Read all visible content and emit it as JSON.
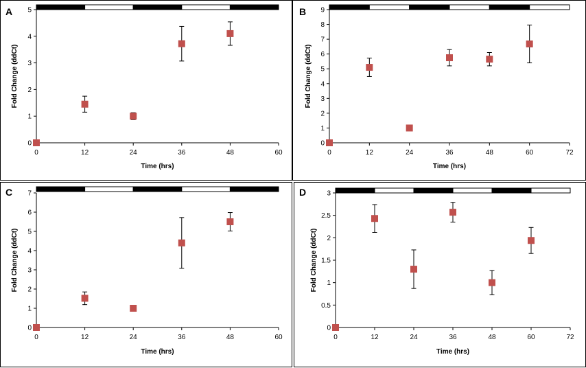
{
  "chart_data": [
    {
      "type": "scatter",
      "panel_label": "A",
      "xlabel": "Time (hrs)",
      "ylabel": "Fold Change (ddCt)",
      "xlim": [
        0,
        60
      ],
      "ylim": [
        0,
        5
      ],
      "xticks": [
        "0",
        "12",
        "24",
        "36",
        "48",
        "60"
      ],
      "xtick_values": [
        0,
        12,
        24,
        36,
        48,
        60
      ],
      "yticks": [
        "0",
        "1",
        "2",
        "3",
        "4",
        "5"
      ],
      "ytick_values": [
        0,
        1,
        2,
        3,
        4,
        5
      ],
      "light_dark_bar": [
        "dark",
        "light",
        "dark",
        "light",
        "dark"
      ],
      "points": [
        {
          "x": 0,
          "y": 0,
          "err": 0
        },
        {
          "x": 12,
          "y": 1.45,
          "err": 0.3
        },
        {
          "x": 24,
          "y": 1.0,
          "err": 0.13
        },
        {
          "x": 36,
          "y": 3.72,
          "err": 0.65
        },
        {
          "x": 48,
          "y": 4.1,
          "err": 0.44
        }
      ],
      "marker_color": "#C0504D"
    },
    {
      "type": "scatter",
      "panel_label": "B",
      "xlabel": "Time (hrs)",
      "ylabel": "Fold Change (ddCt)",
      "xlim": [
        0,
        72
      ],
      "ylim": [
        0,
        9
      ],
      "xticks": [
        "0",
        "12",
        "24",
        "36",
        "48",
        "60",
        "72"
      ],
      "xtick_values": [
        0,
        12,
        24,
        36,
        48,
        60,
        72
      ],
      "yticks": [
        "0",
        "1",
        "2",
        "3",
        "4",
        "5",
        "6",
        "7",
        "8",
        "9"
      ],
      "ytick_values": [
        0,
        1,
        2,
        3,
        4,
        5,
        6,
        7,
        8,
        9
      ],
      "light_dark_bar": [
        "dark",
        "light",
        "dark",
        "light",
        "dark",
        "light"
      ],
      "points": [
        {
          "x": 0,
          "y": 0,
          "err": 0
        },
        {
          "x": 12,
          "y": 5.1,
          "err": 0.62
        },
        {
          "x": 24,
          "y": 1.0,
          "err": 0
        },
        {
          "x": 36,
          "y": 5.75,
          "err": 0.55
        },
        {
          "x": 48,
          "y": 5.65,
          "err": 0.45
        },
        {
          "x": 60,
          "y": 6.68,
          "err": 1.28
        }
      ],
      "marker_color": "#C0504D"
    },
    {
      "type": "scatter",
      "panel_label": "C",
      "xlabel": "Time (hrs)",
      "ylabel": "Fold Change (ddCt)",
      "xlim": [
        0,
        60
      ],
      "ylim": [
        0,
        7
      ],
      "xticks": [
        "0",
        "12",
        "24",
        "36",
        "48",
        "60"
      ],
      "xtick_values": [
        0,
        12,
        24,
        36,
        48,
        60
      ],
      "yticks": [
        "0",
        "1",
        "2",
        "3",
        "4",
        "5",
        "6",
        "7"
      ],
      "ytick_values": [
        0,
        1,
        2,
        3,
        4,
        5,
        6,
        7
      ],
      "light_dark_bar": [
        "dark",
        "light",
        "dark",
        "light",
        "dark"
      ],
      "points": [
        {
          "x": 0,
          "y": 0,
          "err": 0
        },
        {
          "x": 12,
          "y": 1.52,
          "err": 0.33
        },
        {
          "x": 24,
          "y": 1.0,
          "err": 0
        },
        {
          "x": 36,
          "y": 4.4,
          "err": 1.32
        },
        {
          "x": 48,
          "y": 5.5,
          "err": 0.48
        }
      ],
      "marker_color": "#C0504D"
    },
    {
      "type": "scatter",
      "panel_label": "D",
      "xlabel": "Time (hrs)",
      "ylabel": "Fold Change (ddCt)",
      "xlim": [
        0,
        72
      ],
      "ylim": [
        0,
        3
      ],
      "xticks": [
        "0",
        "12",
        "24",
        "36",
        "48",
        "60",
        "72"
      ],
      "xtick_values": [
        0,
        12,
        24,
        36,
        48,
        60,
        72
      ],
      "yticks": [
        "0",
        "0.5",
        "1",
        "1.5",
        "2",
        "2.5",
        "3"
      ],
      "ytick_values": [
        0,
        0.5,
        1,
        1.5,
        2,
        2.5,
        3
      ],
      "light_dark_bar": [
        "dark",
        "light",
        "dark",
        "light",
        "dark",
        "light"
      ],
      "points": [
        {
          "x": 0,
          "y": 0,
          "err": 0
        },
        {
          "x": 12,
          "y": 2.43,
          "err": 0.31
        },
        {
          "x": 24,
          "y": 1.3,
          "err": 0.43
        },
        {
          "x": 36,
          "y": 2.57,
          "err": 0.22
        },
        {
          "x": 48,
          "y": 1.0,
          "err": 0.27
        },
        {
          "x": 60,
          "y": 1.94,
          "err": 0.29
        }
      ],
      "marker_color": "#C0504D"
    }
  ]
}
